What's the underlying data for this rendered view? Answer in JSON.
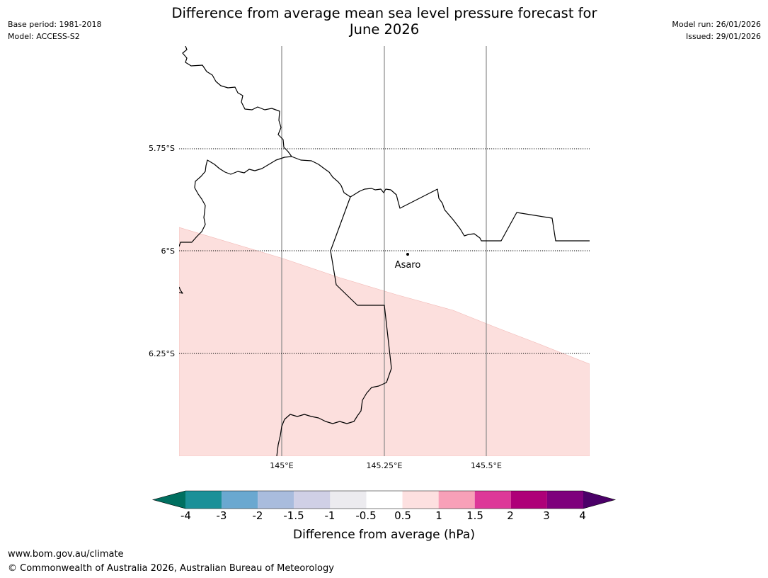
{
  "header": {
    "base_period": "Base period: 1981-2018",
    "model": "Model: ACCESS-S2",
    "title_line1": "Difference from average mean sea level pressure forecast for",
    "title_line2": "June 2026",
    "model_run": "Model run: 26/01/2026",
    "issued": "Issued: 29/01/2026"
  },
  "map": {
    "lat_labels": [
      "5.75°S",
      "6°S",
      "6.25°S"
    ],
    "lon_labels": [
      "145°E",
      "145.25°E",
      "145.5°E"
    ],
    "place": {
      "name": "Asaro"
    },
    "shaded_category": "0.5 to 1 hPa"
  },
  "colorbar": {
    "ticks": [
      "-4",
      "-3",
      "-2",
      "-1.5",
      "-1",
      "-0.5",
      "0.5",
      "1",
      "1.5",
      "2",
      "3",
      "4"
    ],
    "colors": {
      "under": "#006f60",
      "bins": [
        "#1b9098",
        "#6aa8d0",
        "#a9bcdd",
        "#d0d0e6",
        "#ecebef",
        "#ffffff",
        "#fde0e0",
        "#f8a0b8",
        "#dd3898",
        "#ae0078",
        "#7e007c"
      ],
      "over": "#4b0068"
    },
    "label": "Difference from average (hPa)"
  },
  "footer": {
    "url": "www.bom.gov.au/climate",
    "copyright": "© Commonwealth of Australia 2026, Australian Bureau of Meteorology"
  }
}
